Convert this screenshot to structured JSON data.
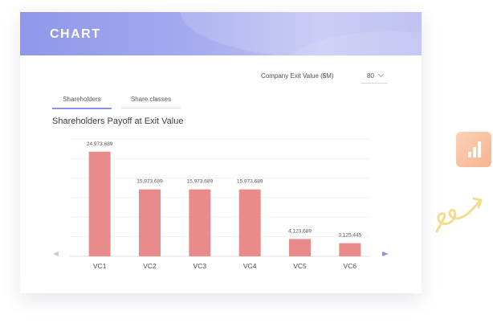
{
  "header": {
    "title": "CHART"
  },
  "controls": {
    "exit_value_label": "Company Exit Value ($M)",
    "exit_value_selected": "80"
  },
  "tabs": [
    {
      "label": "Shareholders",
      "active": true
    },
    {
      "label": "Share classes",
      "active": false
    }
  ],
  "icons": {
    "prev": "chevron-left-icon",
    "next": "chevron-right-icon",
    "dropdown": "chevron-down-icon",
    "side": "bar-chart-icon",
    "decor": "squiggle-arrow-icon"
  },
  "colors": {
    "accent": "#8b93e6",
    "bar": "#ea8b8b",
    "side_icon": "#f6b48f",
    "decor": "#f5dc8c"
  },
  "chart_data": {
    "type": "bar",
    "title": "Shareholders Payoff at Exit Value",
    "categories": [
      "VC1",
      "VC2",
      "VC3",
      "VC4",
      "VC5",
      "VC6"
    ],
    "values": [
      24973689,
      15973689,
      15973689,
      15973689,
      4123689,
      3125445
    ],
    "data_labels": [
      "24,973,689",
      "15,973,689",
      "15,973,689",
      "15,973,689",
      "4,123,689",
      "3,125,445"
    ],
    "ylim": [
      0,
      28000000
    ],
    "grid": true,
    "xlabel": "",
    "ylabel": ""
  }
}
